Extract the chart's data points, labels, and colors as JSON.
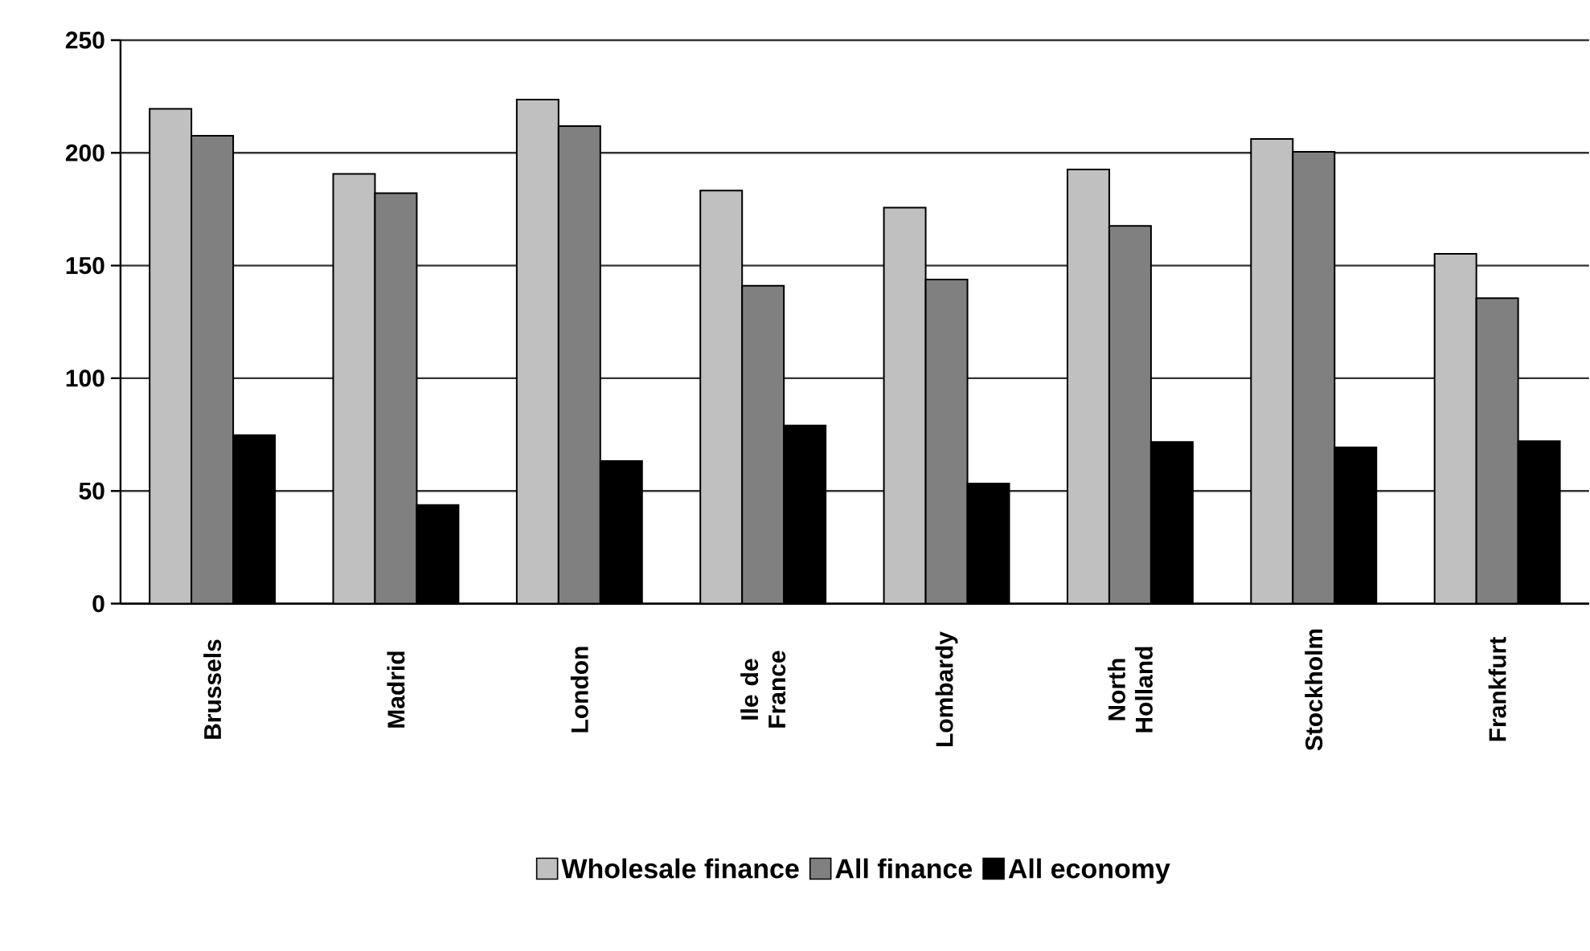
{
  "chart_data": {
    "type": "bar",
    "categories": [
      "Brussels",
      "Madrid",
      "London",
      "Ile de France",
      "Lombardy",
      "North Holland",
      "Stockholm",
      "Frankfurt"
    ],
    "series": [
      {
        "name": "Wholesale finance",
        "color": "#c0c0c0",
        "values": [
          219.5,
          190.7,
          223.6,
          183.3,
          175.7,
          192.6,
          206.2,
          155.2
        ]
      },
      {
        "name": "All finance",
        "color": "#808080",
        "values": [
          207.6,
          182.1,
          211.9,
          141,
          143.8,
          167.6,
          200.5,
          135.5
        ]
      },
      {
        "name": "All economy",
        "color": "#000000",
        "values": [
          74.8,
          43.8,
          63.3,
          79,
          53.3,
          71.7,
          69.3,
          72.1
        ]
      }
    ],
    "ylim": [
      0,
      250
    ],
    "yticks": [
      0,
      50,
      100,
      150,
      200,
      250
    ],
    "grid": "y",
    "legend": "bottom"
  }
}
